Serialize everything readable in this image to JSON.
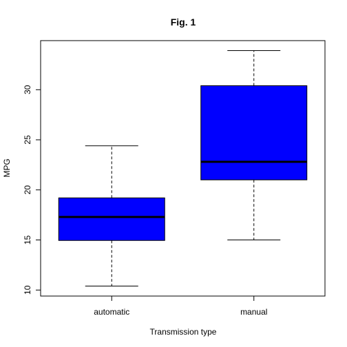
{
  "chart_data": {
    "type": "boxplot",
    "title": "Fig. 1",
    "xlabel": "Transmission type",
    "ylabel": "MPG",
    "categories": [
      "automatic",
      "manual"
    ],
    "boxes": [
      {
        "category": "automatic",
        "min": 10.4,
        "q1": 14.95,
        "median": 17.3,
        "q3": 19.2,
        "max": 24.4
      },
      {
        "category": "manual",
        "min": 15.0,
        "q1": 21.0,
        "median": 22.8,
        "q3": 30.4,
        "max": 33.9
      }
    ],
    "ylim": [
      9.4,
      34.9
    ],
    "yticks": [
      10,
      15,
      20,
      25,
      30
    ],
    "box_color": "#0000ff",
    "grid": false,
    "legend": "none"
  }
}
